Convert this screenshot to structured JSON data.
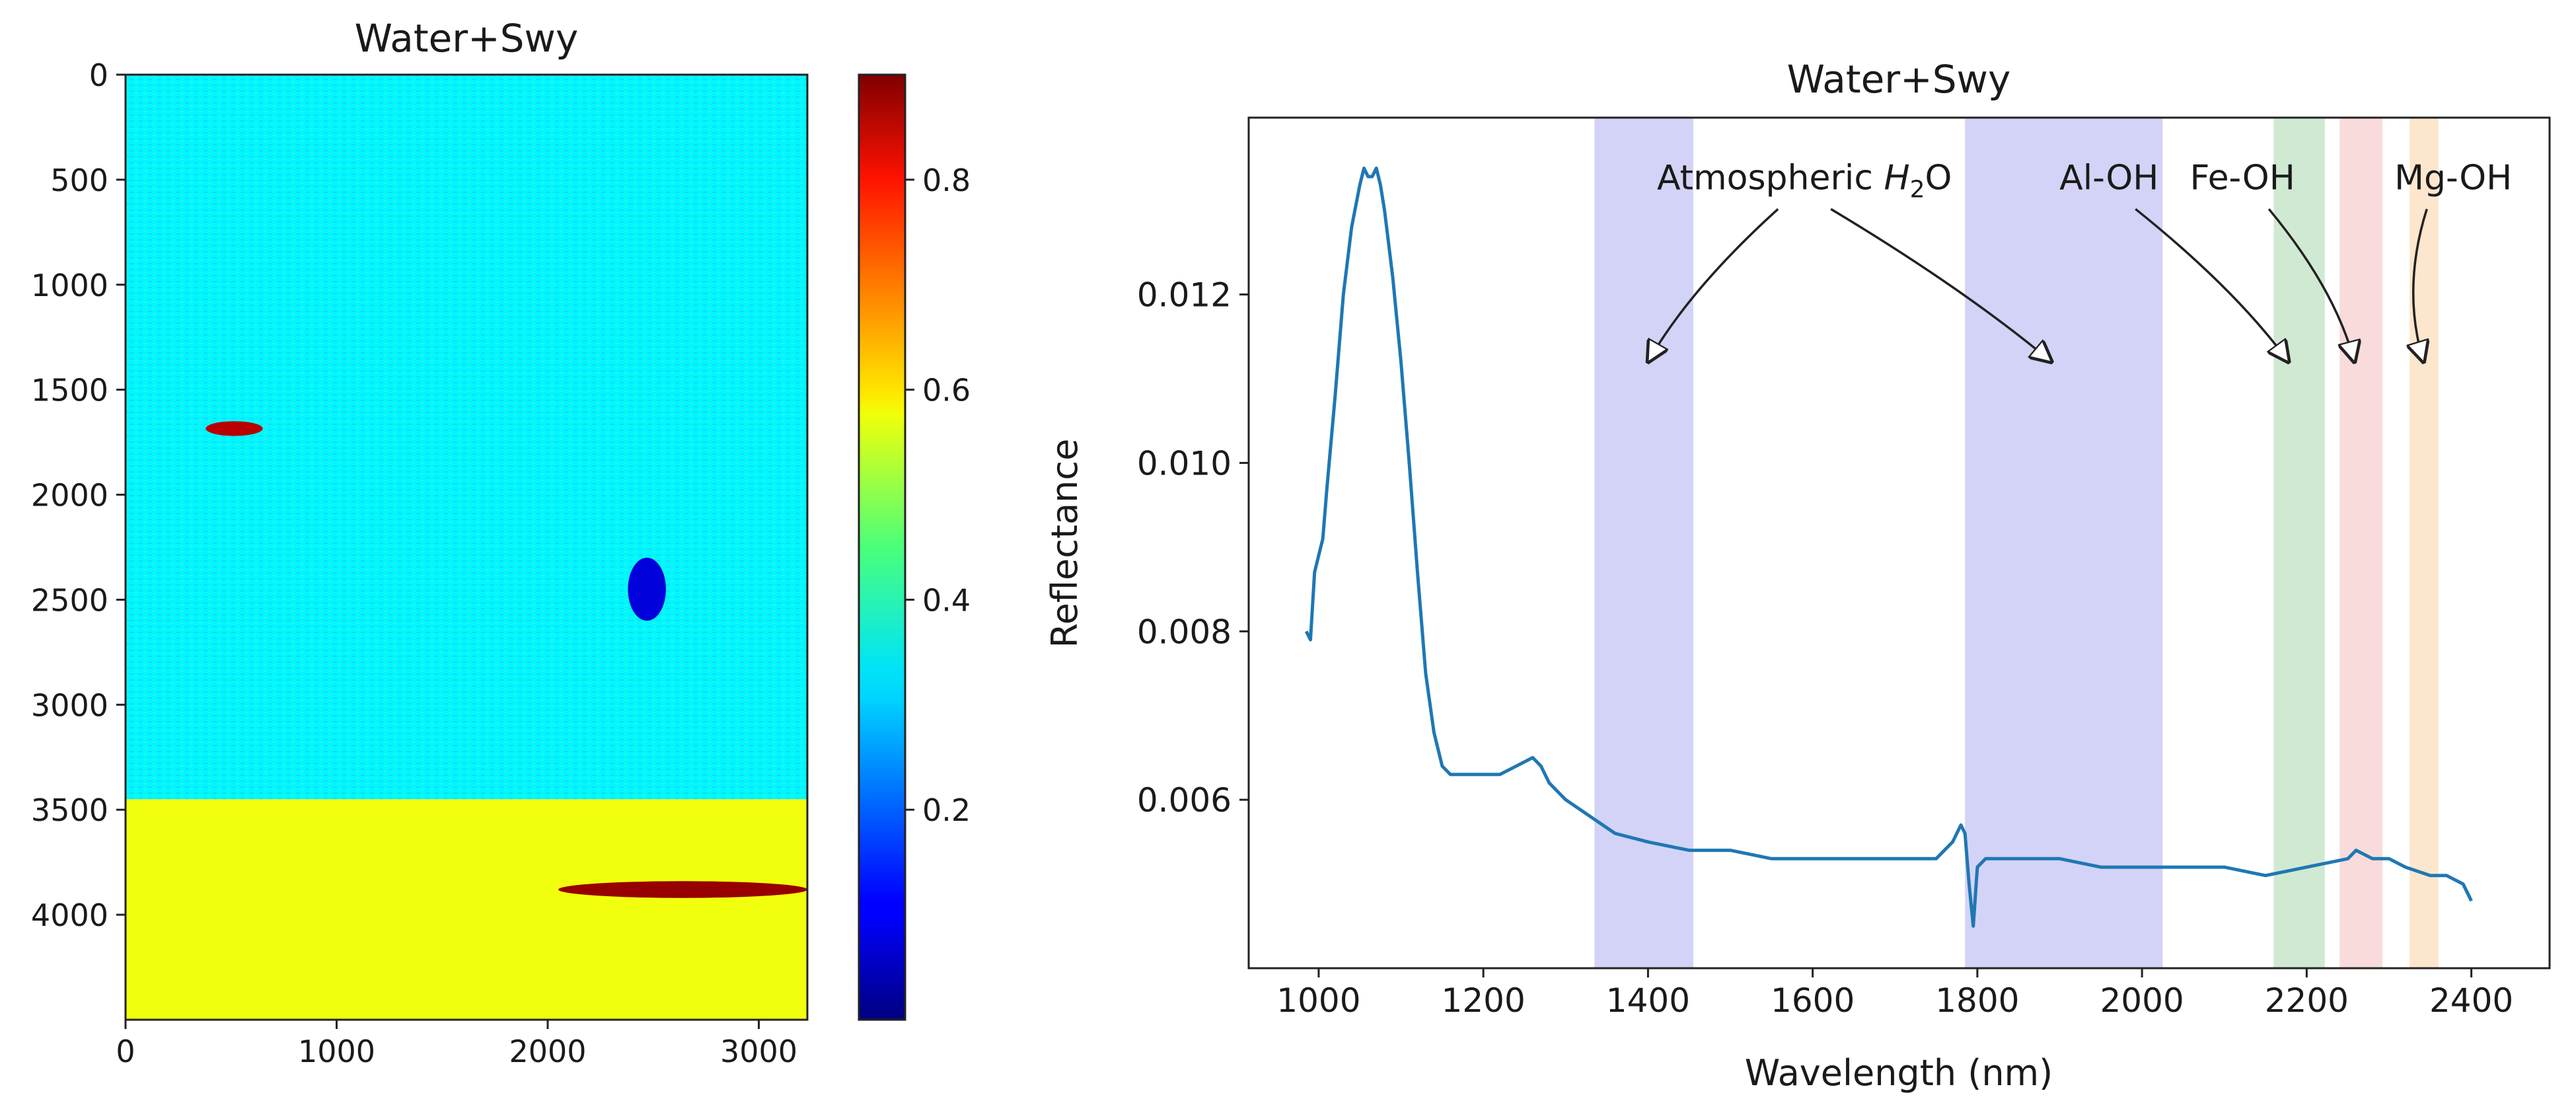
{
  "chart_data": [
    {
      "type": "heatmap",
      "title": "Water+Swy",
      "xlabel": "",
      "ylabel": "",
      "xlim": [
        0,
        3230
      ],
      "ylim": [
        4500,
        0
      ],
      "x_ticks": [
        0,
        1000,
        2000,
        3000
      ],
      "y_ticks": [
        0,
        500,
        1000,
        1500,
        2000,
        2500,
        3000,
        3500,
        4000
      ],
      "colorbar": {
        "colormap": "jet",
        "range": [
          0.0,
          0.9
        ],
        "ticks": [
          0.2,
          0.4,
          0.6,
          0.8
        ],
        "tick_labels": [
          "0.2",
          "0.4",
          "0.6",
          "0.8"
        ]
      },
      "regions": [
        {
          "label": "upper band",
          "y_range": [
            0,
            3450
          ],
          "typical_value": 0.33
        },
        {
          "label": "lower band",
          "y_range": [
            3450,
            4500
          ],
          "typical_value": 0.55
        },
        {
          "label": "high feature",
          "x_range": [
            2050,
            3230
          ],
          "y_range": [
            3840,
            3920
          ],
          "typical_value": 0.88
        },
        {
          "label": "high feature",
          "x_range": [
            380,
            650
          ],
          "y_range": [
            1650,
            1720
          ],
          "typical_value": 0.85
        },
        {
          "label": "low feature",
          "x_range": [
            2380,
            2560
          ],
          "y_range": [
            2300,
            2600
          ],
          "typical_value": 0.08
        }
      ]
    },
    {
      "type": "line",
      "title": "Water+Swy",
      "xlabel": "Wavelength (nm)",
      "ylabel": "Reflectance",
      "xlim": [
        915,
        2495
      ],
      "ylim": [
        0.004,
        0.0141
      ],
      "x_ticks": [
        1000,
        1200,
        1400,
        1600,
        1800,
        2000,
        2200,
        2400
      ],
      "y_ticks": [
        0.006,
        0.008,
        0.01,
        0.012
      ],
      "y_tick_labels": [
        "0.006",
        "0.008",
        "0.010",
        "0.012"
      ],
      "series": [
        {
          "name": "Reflectance",
          "color": "#1f77b4",
          "x": [
            985,
            990,
            995,
            1000,
            1005,
            1010,
            1020,
            1030,
            1040,
            1050,
            1055,
            1060,
            1065,
            1070,
            1075,
            1080,
            1090,
            1100,
            1110,
            1120,
            1130,
            1140,
            1150,
            1160,
            1180,
            1200,
            1220,
            1240,
            1260,
            1270,
            1280,
            1300,
            1330,
            1360,
            1400,
            1450,
            1500,
            1550,
            1600,
            1650,
            1700,
            1750,
            1770,
            1780,
            1785,
            1790,
            1795,
            1800,
            1810,
            1850,
            1900,
            1950,
            2000,
            2050,
            2100,
            2150,
            2200,
            2250,
            2260,
            2280,
            2300,
            2320,
            2350,
            2370,
            2390,
            2400
          ],
          "y": [
            0.008,
            0.0079,
            0.0087,
            0.0089,
            0.0091,
            0.0097,
            0.0108,
            0.012,
            0.0128,
            0.0133,
            0.0135,
            0.0134,
            0.0134,
            0.0135,
            0.0133,
            0.013,
            0.0122,
            0.0112,
            0.01,
            0.0087,
            0.0075,
            0.0068,
            0.0064,
            0.0063,
            0.0063,
            0.0063,
            0.0063,
            0.0064,
            0.0065,
            0.0064,
            0.0062,
            0.006,
            0.0058,
            0.0056,
            0.0055,
            0.0054,
            0.0054,
            0.0053,
            0.0053,
            0.0053,
            0.0053,
            0.0053,
            0.0055,
            0.0057,
            0.0056,
            0.005,
            0.0045,
            0.0052,
            0.0053,
            0.0053,
            0.0053,
            0.0052,
            0.0052,
            0.0052,
            0.0052,
            0.0051,
            0.0052,
            0.0053,
            0.0054,
            0.0053,
            0.0053,
            0.0052,
            0.0051,
            0.0051,
            0.005,
            0.0048
          ]
        }
      ],
      "bands": [
        {
          "x_range": [
            1335,
            1455
          ],
          "color": "#c8c8f5"
        },
        {
          "x_range": [
            1785,
            2025
          ],
          "color": "#c8c8f5"
        },
        {
          "x_range": [
            2160,
            2222
          ],
          "color": "#c4e3c8"
        },
        {
          "x_range": [
            2240,
            2292
          ],
          "color": "#f7d2d2"
        },
        {
          "x_range": [
            2325,
            2360
          ],
          "color": "#fbe0c0"
        }
      ],
      "annotations": [
        {
          "text": "Atmospheric H2O",
          "main": "Atmospheric ",
          "italic": "H",
          "sub": "2",
          "tail": "O",
          "text_at": [
            1590,
            0.01325
          ],
          "arrows_to": [
            [
              1400,
              0.0112
            ],
            [
              1890,
              0.0112
            ]
          ]
        },
        {
          "text": "Al-OH",
          "text_at": [
            1960,
            0.01325
          ],
          "arrows_to": [
            [
              2178,
              0.0112
            ]
          ]
        },
        {
          "text": "Fe-OH",
          "text_at": [
            2122,
            0.01325
          ],
          "arrows_to": [
            [
              2258,
              0.0112
            ]
          ]
        },
        {
          "text": "Mg-OH",
          "text_at": [
            2378,
            0.01325
          ],
          "arrows_to": [
            [
              2342,
              0.0112
            ]
          ]
        }
      ]
    }
  ]
}
